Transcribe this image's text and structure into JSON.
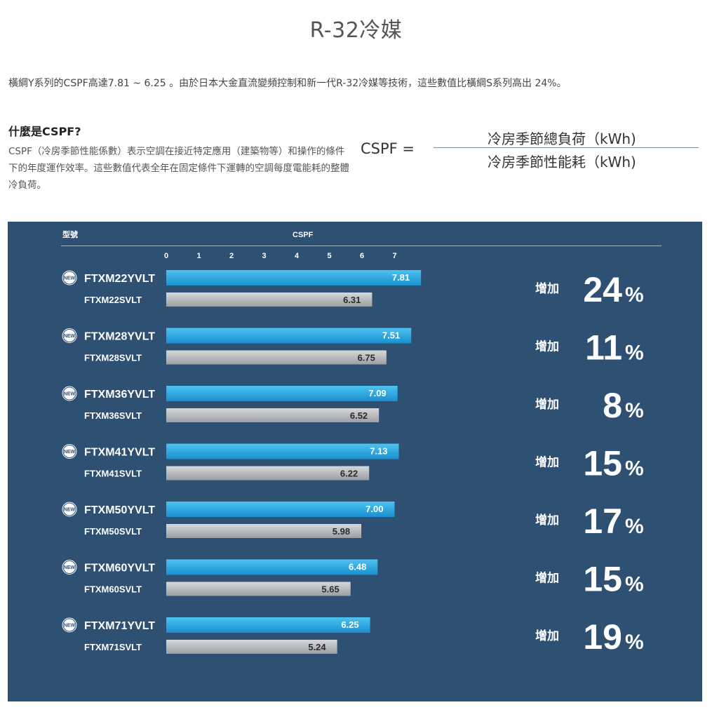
{
  "page": {
    "title": "R-32冷媒",
    "intro": "橫綱Y系列的CSPF高達7.81 ~ 6.25 。由於日本大金直流變頻控制和新一代R-32冷媒等技術，這些數值比橫綱S系列高出 24%。",
    "what_title": "什麼是CSPF?",
    "what_desc": "CSPF（冷房季節性能係數）表示空調在接近特定應用（建築物等）和操作的條件下的年度運作效率。這些數值代表全年在固定條件下運轉的空調每度電能耗的整體冷負荷。",
    "formula": {
      "lhs": "CSPF =",
      "numerator": "冷房季節總負荷（kWh)",
      "denominator": "冷房季節性能耗（kWh)"
    }
  },
  "chart_data": {
    "type": "bar",
    "orientation": "horizontal",
    "header_model": "型號",
    "header_value": "CSPF",
    "xlim": [
      0,
      7
    ],
    "ticks": [
      "0",
      "1",
      "2",
      "3",
      "4",
      "5",
      "6",
      "7"
    ],
    "badge": "NEW",
    "increase_label": "增加",
    "percent_sign": "%",
    "colors": {
      "new_bar": "#29a9e1",
      "old_bar": "#b9bbbd",
      "panel": "#2e5073"
    },
    "groups": [
      {
        "y_model": "FTXM22YVLT",
        "y_value": 7.81,
        "y_label": "7.81",
        "s_model": "FTXM22SVLT",
        "s_value": 6.31,
        "s_label": "6.31",
        "increase": "24"
      },
      {
        "y_model": "FTXM28YVLT",
        "y_value": 7.51,
        "y_label": "7.51",
        "s_model": "FTXM28SVLT",
        "s_value": 6.75,
        "s_label": "6.75",
        "increase": "11"
      },
      {
        "y_model": "FTXM36YVLT",
        "y_value": 7.09,
        "y_label": "7.09",
        "s_model": "FTXM36SVLT",
        "s_value": 6.52,
        "s_label": "6.52",
        "increase": "8"
      },
      {
        "y_model": "FTXM41YVLT",
        "y_value": 7.13,
        "y_label": "7.13",
        "s_model": "FTXM41SVLT",
        "s_value": 6.22,
        "s_label": "6.22",
        "increase": "15"
      },
      {
        "y_model": "FTXM50YVLT",
        "y_value": 7.0,
        "y_label": "7.00",
        "s_model": "FTXM50SVLT",
        "s_value": 5.98,
        "s_label": "5.98",
        "increase": "17"
      },
      {
        "y_model": "FTXM60YVLT",
        "y_value": 6.48,
        "y_label": "6.48",
        "s_model": "FTXM60SVLT",
        "s_value": 5.65,
        "s_label": "5.65",
        "increase": "15"
      },
      {
        "y_model": "FTXM71YVLT",
        "y_value": 6.25,
        "y_label": "6.25",
        "s_model": "FTXM71SVLT",
        "s_value": 5.24,
        "s_label": "5.24",
        "increase": "19"
      }
    ]
  }
}
